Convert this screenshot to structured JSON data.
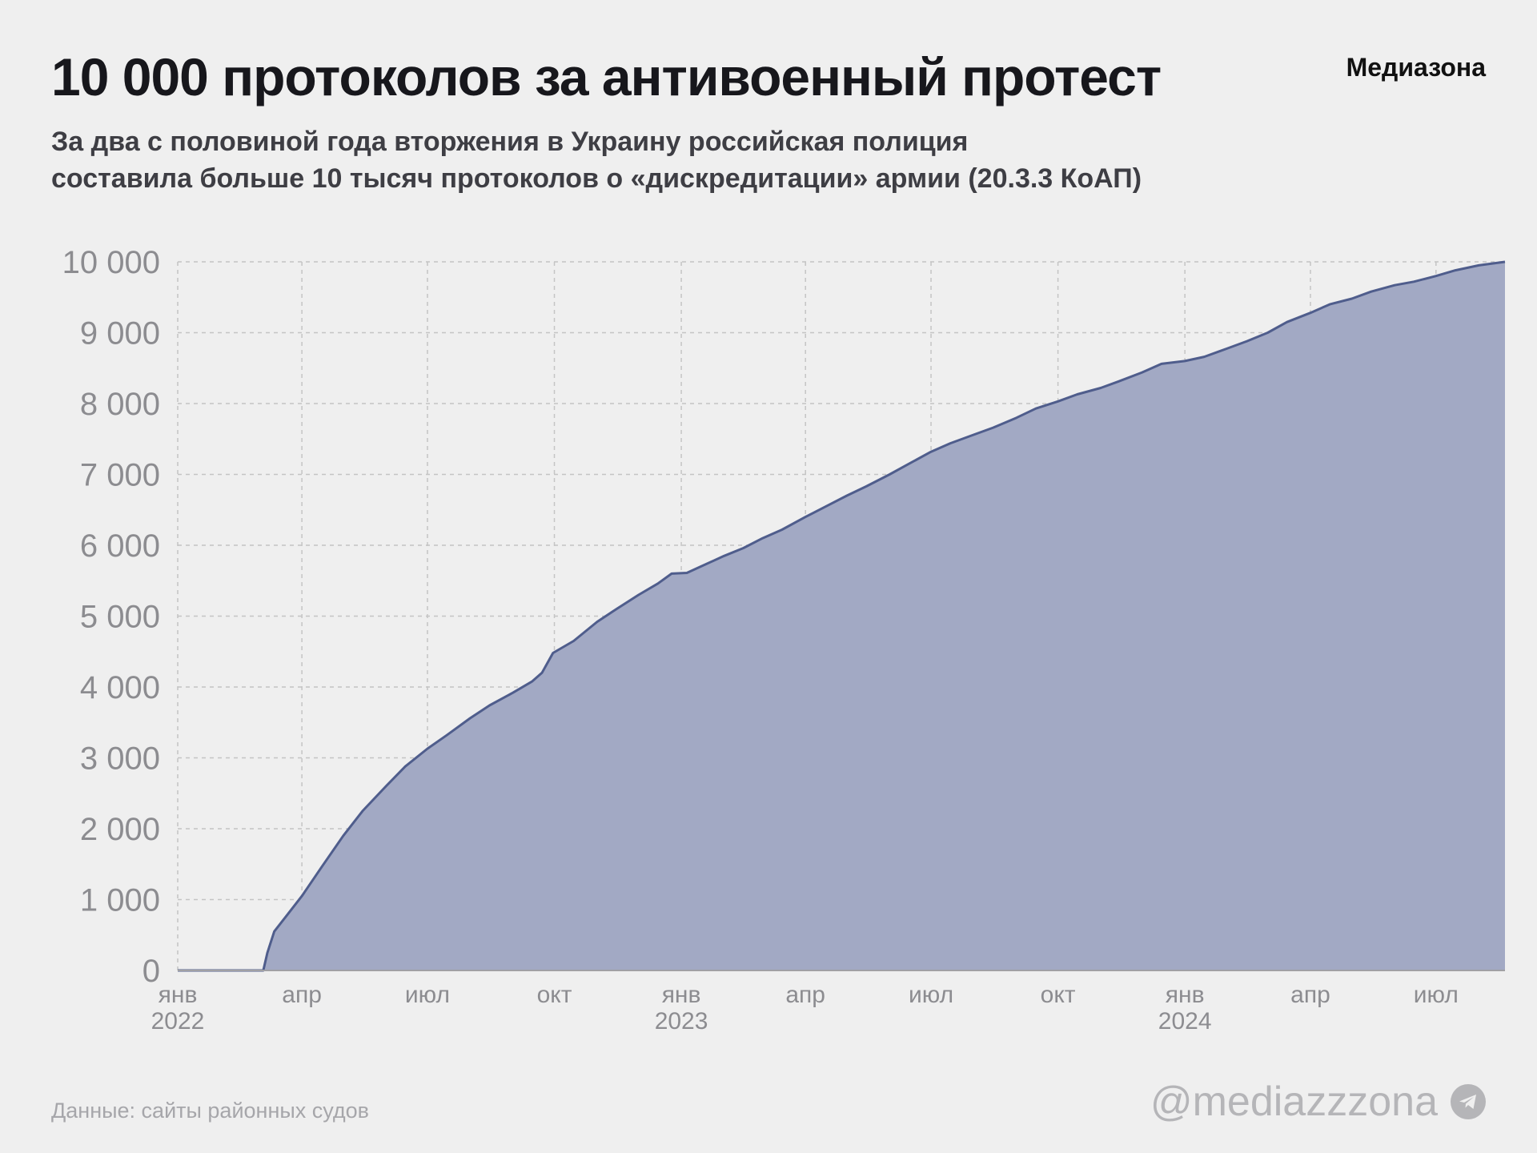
{
  "header": {
    "title": "10 000 протоколов за антивоенный протест",
    "brand": "Медиазона",
    "subtitle_line1": "За два с половиной года вторжения в Украину российская полиция",
    "subtitle_line2": "составила больше 10 тысяч протоколов о «дискредитации» армии (20.3.3 КоАП)"
  },
  "footer": {
    "source": "Данные: сайты районных судов",
    "handle": "@mediazzzona",
    "handle_icon": "telegram-icon"
  },
  "colors": {
    "area_fill": "#a2a9c4",
    "line": "#4f5d8c",
    "grid": "#c4c4c4",
    "tick_text": "#8c8c90"
  },
  "chart_data": {
    "type": "area",
    "title": "",
    "xlabel": "",
    "ylabel": "",
    "ylim": [
      0,
      10000
    ],
    "xlim": [
      "2022-01-01",
      "2024-08-20"
    ],
    "grid": true,
    "y_ticks": [
      {
        "value": 0,
        "label": "0"
      },
      {
        "value": 1000,
        "label": "1 000"
      },
      {
        "value": 2000,
        "label": "2 000"
      },
      {
        "value": 3000,
        "label": "3 000"
      },
      {
        "value": 4000,
        "label": "4 000"
      },
      {
        "value": 5000,
        "label": "5 000"
      },
      {
        "value": 6000,
        "label": "6 000"
      },
      {
        "value": 7000,
        "label": "7 000"
      },
      {
        "value": 8000,
        "label": "8 000"
      },
      {
        "value": 9000,
        "label": "9 000"
      },
      {
        "value": 10000,
        "label": "10 000"
      }
    ],
    "x_ticks": [
      {
        "date": "2022-01-01",
        "label": "янв",
        "year": "2022"
      },
      {
        "date": "2022-04-01",
        "label": "апр",
        "year": ""
      },
      {
        "date": "2022-07-01",
        "label": "июл",
        "year": ""
      },
      {
        "date": "2022-10-01",
        "label": "окт",
        "year": ""
      },
      {
        "date": "2023-01-01",
        "label": "янв",
        "year": "2023"
      },
      {
        "date": "2023-04-01",
        "label": "апр",
        "year": ""
      },
      {
        "date": "2023-07-01",
        "label": "июл",
        "year": ""
      },
      {
        "date": "2023-10-01",
        "label": "окт",
        "year": ""
      },
      {
        "date": "2024-01-01",
        "label": "янв",
        "year": "2024"
      },
      {
        "date": "2024-04-01",
        "label": "апр",
        "year": ""
      },
      {
        "date": "2024-07-01",
        "label": "июл",
        "year": ""
      }
    ],
    "series": [
      {
        "points": [
          {
            "x": "2022-01-01",
            "y": 0
          },
          {
            "x": "2022-03-04",
            "y": 0
          },
          {
            "x": "2022-03-07",
            "y": 250
          },
          {
            "x": "2022-03-12",
            "y": 550
          },
          {
            "x": "2022-03-22",
            "y": 800
          },
          {
            "x": "2022-04-01",
            "y": 1050
          },
          {
            "x": "2022-04-15",
            "y": 1450
          },
          {
            "x": "2022-05-01",
            "y": 1900
          },
          {
            "x": "2022-05-15",
            "y": 2250
          },
          {
            "x": "2022-06-01",
            "y": 2600
          },
          {
            "x": "2022-06-15",
            "y": 2880
          },
          {
            "x": "2022-07-01",
            "y": 3130
          },
          {
            "x": "2022-07-15",
            "y": 3320
          },
          {
            "x": "2022-08-01",
            "y": 3560
          },
          {
            "x": "2022-08-15",
            "y": 3740
          },
          {
            "x": "2022-09-01",
            "y": 3920
          },
          {
            "x": "2022-09-15",
            "y": 4080
          },
          {
            "x": "2022-09-22",
            "y": 4200
          },
          {
            "x": "2022-09-30",
            "y": 4480
          },
          {
            "x": "2022-10-15",
            "y": 4650
          },
          {
            "x": "2022-11-01",
            "y": 4920
          },
          {
            "x": "2022-11-15",
            "y": 5100
          },
          {
            "x": "2022-12-01",
            "y": 5300
          },
          {
            "x": "2022-12-15",
            "y": 5460
          },
          {
            "x": "2022-12-25",
            "y": 5600
          },
          {
            "x": "2023-01-05",
            "y": 5610
          },
          {
            "x": "2023-01-15",
            "y": 5700
          },
          {
            "x": "2023-02-01",
            "y": 5850
          },
          {
            "x": "2023-02-15",
            "y": 5960
          },
          {
            "x": "2023-03-01",
            "y": 6100
          },
          {
            "x": "2023-03-15",
            "y": 6220
          },
          {
            "x": "2023-04-01",
            "y": 6400
          },
          {
            "x": "2023-04-15",
            "y": 6540
          },
          {
            "x": "2023-05-01",
            "y": 6700
          },
          {
            "x": "2023-05-15",
            "y": 6830
          },
          {
            "x": "2023-06-01",
            "y": 7000
          },
          {
            "x": "2023-06-15",
            "y": 7150
          },
          {
            "x": "2023-07-01",
            "y": 7320
          },
          {
            "x": "2023-07-15",
            "y": 7440
          },
          {
            "x": "2023-08-01",
            "y": 7560
          },
          {
            "x": "2023-08-15",
            "y": 7660
          },
          {
            "x": "2023-09-01",
            "y": 7800
          },
          {
            "x": "2023-09-15",
            "y": 7930
          },
          {
            "x": "2023-10-01",
            "y": 8030
          },
          {
            "x": "2023-10-15",
            "y": 8130
          },
          {
            "x": "2023-11-01",
            "y": 8220
          },
          {
            "x": "2023-11-15",
            "y": 8320
          },
          {
            "x": "2023-12-01",
            "y": 8440
          },
          {
            "x": "2023-12-15",
            "y": 8560
          },
          {
            "x": "2024-01-01",
            "y": 8600
          },
          {
            "x": "2024-01-15",
            "y": 8660
          },
          {
            "x": "2024-02-01",
            "y": 8780
          },
          {
            "x": "2024-02-15",
            "y": 8880
          },
          {
            "x": "2024-03-01",
            "y": 9000
          },
          {
            "x": "2024-03-15",
            "y": 9150
          },
          {
            "x": "2024-04-01",
            "y": 9280
          },
          {
            "x": "2024-04-15",
            "y": 9400
          },
          {
            "x": "2024-05-01",
            "y": 9480
          },
          {
            "x": "2024-05-15",
            "y": 9580
          },
          {
            "x": "2024-06-01",
            "y": 9670
          },
          {
            "x": "2024-06-15",
            "y": 9720
          },
          {
            "x": "2024-07-01",
            "y": 9800
          },
          {
            "x": "2024-07-15",
            "y": 9880
          },
          {
            "x": "2024-08-01",
            "y": 9950
          },
          {
            "x": "2024-08-20",
            "y": 10000
          }
        ]
      }
    ]
  }
}
